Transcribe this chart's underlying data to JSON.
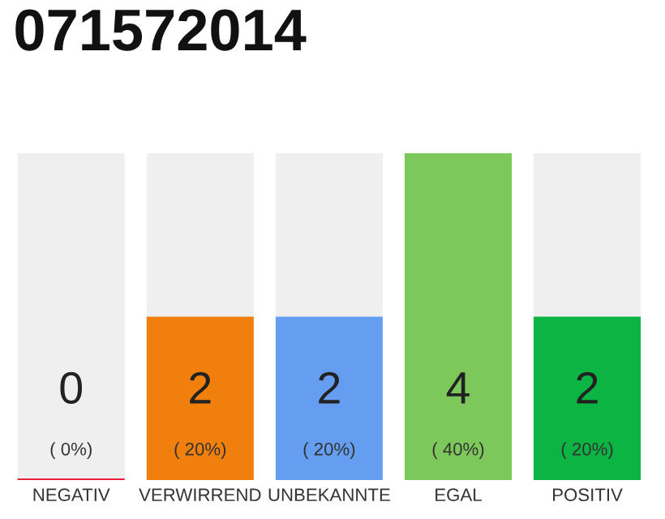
{
  "chart_data": {
    "type": "bar",
    "title": "071572014",
    "categories": [
      "NEGATIV",
      "VERWIRREND",
      "UNBEKANNTE",
      "EGAL",
      "POSITIV"
    ],
    "values": [
      0,
      2,
      2,
      4,
      2
    ],
    "colors": [
      "#e8203c",
      "#f07f0c",
      "#659ef0",
      "#7cc85a",
      "#0bb443"
    ],
    "value_labels": [
      "0\n( 0%)",
      "2\n( 20%)",
      "2\n( 20%)",
      "4\n( 40%)",
      "2\n( 20%)"
    ],
    "ylim": [
      0,
      4
    ],
    "tick_labels": "x",
    "grid": false,
    "legend": false
  }
}
